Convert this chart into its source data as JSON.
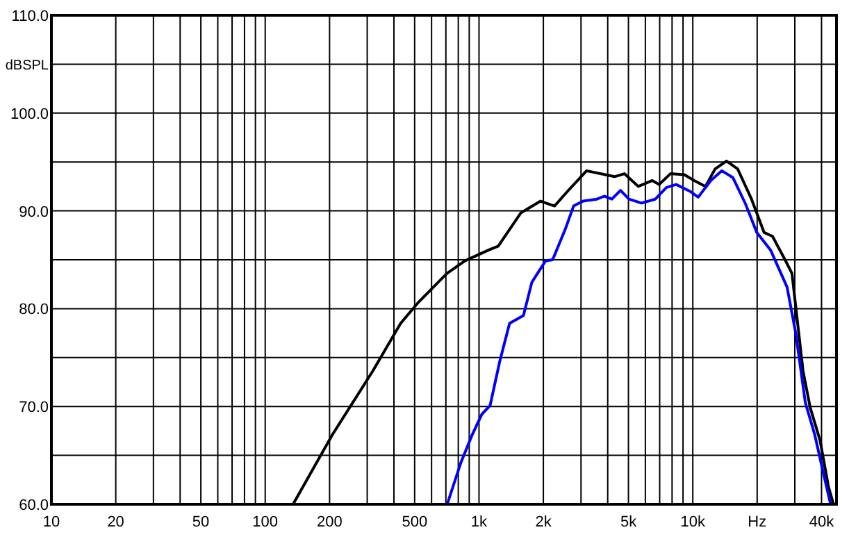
{
  "chart_data": {
    "type": "line",
    "ylabel": "dBSPL",
    "grid": true,
    "log": "x",
    "line_style": "solid",
    "marker": "none",
    "xlim": [
      10,
      47000
    ],
    "ylim": [
      60,
      110
    ],
    "xticks": [
      10,
      20,
      {
        "value": 30,
        "label": null
      },
      {
        "value": 40,
        "label": null
      },
      50,
      {
        "value": 60,
        "label": null
      },
      {
        "value": 70,
        "label": null
      },
      {
        "value": 80,
        "label": null
      },
      {
        "value": 90,
        "label": null
      },
      100,
      200,
      {
        "value": 300,
        "label": null
      },
      {
        "value": 400,
        "label": null
      },
      500,
      {
        "value": 600,
        "label": null
      },
      {
        "value": 700,
        "label": null
      },
      {
        "value": 800,
        "label": null
      },
      {
        "value": 900,
        "label": null
      },
      {
        "value": 1000,
        "label": "1k"
      },
      {
        "value": 2000,
        "label": "2k"
      },
      {
        "value": 3000,
        "label": null
      },
      {
        "value": 4000,
        "label": null
      },
      {
        "value": 5000,
        "label": "5k"
      },
      {
        "value": 6000,
        "label": null
      },
      {
        "value": 7000,
        "label": null
      },
      {
        "value": 8000,
        "label": null
      },
      {
        "value": 9000,
        "label": null
      },
      {
        "value": 10000,
        "label": "10k"
      },
      {
        "value": 20000,
        "label": "Hz"
      },
      {
        "value": 30000,
        "label": null
      },
      {
        "value": 40000,
        "label": "40k"
      }
    ],
    "yticks": [
      {
        "value": 60,
        "label": "60.0"
      },
      {
        "value": 65,
        "label": null
      },
      {
        "value": 70,
        "label": "70.0"
      },
      {
        "value": 75,
        "label": null
      },
      {
        "value": 80,
        "label": "80.0"
      },
      {
        "value": 85,
        "label": null
      },
      {
        "value": 90,
        "label": "90.0"
      },
      {
        "value": 95,
        "label": null
      },
      {
        "value": 100,
        "label": "100.0"
      },
      {
        "value": 105,
        "label": null
      },
      {
        "value": 110,
        "label": "110.0"
      }
    ],
    "series": [
      {
        "color": "#000000",
        "x": [
          135,
          206,
          318,
          430,
          523,
          708,
          861,
          1111,
          1230,
          1570,
          1940,
          2255,
          2620,
          3185,
          4305,
          4790,
          5560,
          6460,
          6960,
          7860,
          9130,
          10160,
          11460,
          12730,
          14370,
          16200,
          18820,
          21540,
          23600,
          27000,
          29100,
          32800,
          35400,
          39400,
          43100,
          45500
        ],
        "values": [
          60,
          67.1,
          73.6,
          78.5,
          80.7,
          83.6,
          84.9,
          86.0,
          86.4,
          89.8,
          91.0,
          90.5,
          92.1,
          94.1,
          93.5,
          93.8,
          92.5,
          93.1,
          92.7,
          93.8,
          93.7,
          93.1,
          92.5,
          94.3,
          95.1,
          94.3,
          91.2,
          87.8,
          87.4,
          85.0,
          83.6,
          73.6,
          69.9,
          66.5,
          61.8,
          60
        ]
      },
      {
        "color": "#0000ff",
        "x": [
          710,
          824,
          929,
          1031,
          1127,
          1250,
          1390,
          1614,
          1767,
          2050,
          2210,
          2530,
          2770,
          3070,
          3560,
          3850,
          4180,
          4590,
          5030,
          5750,
          6680,
          7530,
          8360,
          9710,
          10600,
          12140,
          13680,
          15400,
          17650,
          19900,
          23100,
          27600,
          30300,
          33600,
          37200,
          40700,
          44000
        ],
        "values": [
          60,
          64.3,
          67.1,
          69.2,
          70.1,
          74.6,
          78.5,
          79.3,
          82.7,
          84.9,
          85.0,
          88.1,
          90.5,
          91.0,
          91.2,
          91.5,
          91.2,
          92.1,
          91.2,
          90.8,
          91.2,
          92.4,
          92.7,
          92.0,
          91.4,
          93.1,
          94.1,
          93.4,
          90.7,
          87.8,
          86.0,
          82.2,
          77.5,
          70.4,
          67.1,
          63.3,
          60.1
        ]
      }
    ]
  }
}
